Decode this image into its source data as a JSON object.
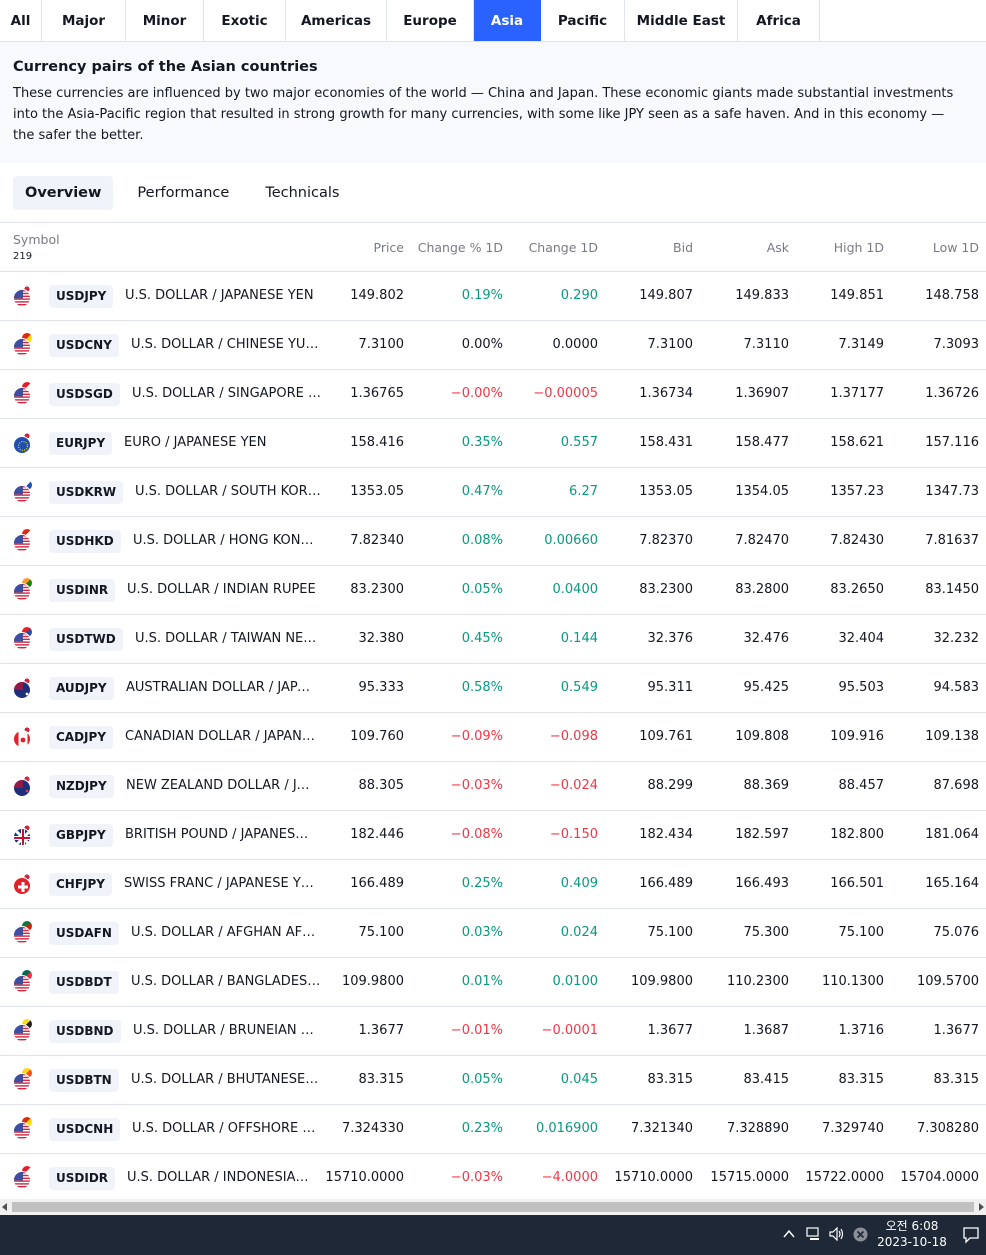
{
  "region_tabs": [
    {
      "label": "All"
    },
    {
      "label": "Major"
    },
    {
      "label": "Minor"
    },
    {
      "label": "Exotic"
    },
    {
      "label": "Americas"
    },
    {
      "label": "Europe"
    },
    {
      "label": "Asia"
    },
    {
      "label": "Pacific"
    },
    {
      "label": "Middle East"
    },
    {
      "label": "Africa"
    }
  ],
  "region_active": "Asia",
  "description": {
    "title": "Currency pairs of the Asian countries",
    "text": "These currencies are influenced by two major economies of the world — China and Japan. These economic giants made substantial investments into the Asia-Pacific region that resulted in strong growth for many currencies, with some like JPY seen as a safe haven. And in this economy — the safer the better."
  },
  "view_tabs": [
    {
      "label": "Overview"
    },
    {
      "label": "Performance"
    },
    {
      "label": "Technicals"
    }
  ],
  "view_active": "Overview",
  "table": {
    "columns": {
      "symbol": "Symbol",
      "count": "219",
      "price": "Price",
      "change_pct": "Change % 1D",
      "change": "Change 1D",
      "bid": "Bid",
      "ask": "Ask",
      "high": "High 1D",
      "low": "Low 1D"
    },
    "rows": [
      {
        "ticker": "USDJPY",
        "name": "U.S. DOLLAR / JAPANESE YEN",
        "price": "149.802",
        "change_pct": "0.19%",
        "change": "0.290",
        "bid": "149.807",
        "ask": "149.833",
        "high": "149.851",
        "low": "148.758",
        "dir": "pos",
        "flag1": "us",
        "flag2": "jp"
      },
      {
        "ticker": "USDCNY",
        "name": "U.S. DOLLAR / CHINESE YUAN",
        "price": "7.3100",
        "change_pct": "0.00%",
        "change": "0.0000",
        "bid": "7.3100",
        "ask": "7.3110",
        "high": "7.3149",
        "low": "7.3093",
        "dir": "neutral",
        "flag1": "us",
        "flag2": "cn"
      },
      {
        "ticker": "USDSGD",
        "name": "U.S. DOLLAR / SINGAPORE D...",
        "price": "1.36765",
        "change_pct": "−0.00%",
        "change": "−0.00005",
        "bid": "1.36734",
        "ask": "1.36907",
        "high": "1.37177",
        "low": "1.36726",
        "dir": "neg",
        "flag1": "us",
        "flag2": "sg"
      },
      {
        "ticker": "EURJPY",
        "name": "EURO / JAPANESE YEN",
        "price": "158.416",
        "change_pct": "0.35%",
        "change": "0.557",
        "bid": "158.431",
        "ask": "158.477",
        "high": "158.621",
        "low": "157.116",
        "dir": "pos",
        "flag1": "eu",
        "flag2": "jp"
      },
      {
        "ticker": "USDKRW",
        "name": "U.S. DOLLAR / SOUTH KORE...",
        "price": "1353.05",
        "change_pct": "0.47%",
        "change": "6.27",
        "bid": "1353.05",
        "ask": "1354.05",
        "high": "1357.23",
        "low": "1347.73",
        "dir": "pos",
        "flag1": "us",
        "flag2": "kr"
      },
      {
        "ticker": "USDHKD",
        "name": "U.S. DOLLAR / HONG KONG ...",
        "price": "7.82340",
        "change_pct": "0.08%",
        "change": "0.00660",
        "bid": "7.82370",
        "ask": "7.82470",
        "high": "7.82430",
        "low": "7.81637",
        "dir": "pos",
        "flag1": "us",
        "flag2": "hk"
      },
      {
        "ticker": "USDINR",
        "name": "U.S. DOLLAR / INDIAN RUPEE",
        "price": "83.2300",
        "change_pct": "0.05%",
        "change": "0.0400",
        "bid": "83.2300",
        "ask": "83.2800",
        "high": "83.2650",
        "low": "83.1450",
        "dir": "pos",
        "flag1": "us",
        "flag2": "in"
      },
      {
        "ticker": "USDTWD",
        "name": "U.S. DOLLAR / TAIWAN NEW...",
        "price": "32.380",
        "change_pct": "0.45%",
        "change": "0.144",
        "bid": "32.376",
        "ask": "32.476",
        "high": "32.404",
        "low": "32.232",
        "dir": "pos",
        "flag1": "us",
        "flag2": "tw"
      },
      {
        "ticker": "AUDJPY",
        "name": "AUSTRALIAN DOLLAR / JAPA...",
        "price": "95.333",
        "change_pct": "0.58%",
        "change": "0.549",
        "bid": "95.311",
        "ask": "95.425",
        "high": "95.503",
        "low": "94.583",
        "dir": "pos",
        "flag1": "au",
        "flag2": "jp"
      },
      {
        "ticker": "CADJPY",
        "name": "CANADIAN DOLLAR / JAPANE...",
        "price": "109.760",
        "change_pct": "−0.09%",
        "change": "−0.098",
        "bid": "109.761",
        "ask": "109.808",
        "high": "109.916",
        "low": "109.138",
        "dir": "neg",
        "flag1": "ca",
        "flag2": "jp"
      },
      {
        "ticker": "NZDJPY",
        "name": "NEW ZEALAND DOLLAR / JA...",
        "price": "88.305",
        "change_pct": "−0.03%",
        "change": "−0.024",
        "bid": "88.299",
        "ask": "88.369",
        "high": "88.457",
        "low": "87.698",
        "dir": "neg",
        "flag1": "nz",
        "flag2": "jp"
      },
      {
        "ticker": "GBPJPY",
        "name": "BRITISH POUND / JAPANESE ...",
        "price": "182.446",
        "change_pct": "−0.08%",
        "change": "−0.150",
        "bid": "182.434",
        "ask": "182.597",
        "high": "182.800",
        "low": "181.064",
        "dir": "neg",
        "flag1": "gb",
        "flag2": "jp"
      },
      {
        "ticker": "CHFJPY",
        "name": "SWISS FRANC / JAPANESE YEN",
        "price": "166.489",
        "change_pct": "0.25%",
        "change": "0.409",
        "bid": "166.489",
        "ask": "166.493",
        "high": "166.501",
        "low": "165.164",
        "dir": "pos",
        "flag1": "ch",
        "flag2": "jp"
      },
      {
        "ticker": "USDAFN",
        "name": "U.S. DOLLAR / AFGHAN AFG...",
        "price": "75.100",
        "change_pct": "0.03%",
        "change": "0.024",
        "bid": "75.100",
        "ask": "75.300",
        "high": "75.100",
        "low": "75.076",
        "dir": "pos",
        "flag1": "us",
        "flag2": "af"
      },
      {
        "ticker": "USDBDT",
        "name": "U.S. DOLLAR / BANGLADESH...",
        "price": "109.9800",
        "change_pct": "0.01%",
        "change": "0.0100",
        "bid": "109.9800",
        "ask": "110.2300",
        "high": "110.1300",
        "low": "109.5700",
        "dir": "pos",
        "flag1": "us",
        "flag2": "bd"
      },
      {
        "ticker": "USDBND",
        "name": "U.S. DOLLAR / BRUNEIAN D...",
        "price": "1.3677",
        "change_pct": "−0.01%",
        "change": "−0.0001",
        "bid": "1.3677",
        "ask": "1.3687",
        "high": "1.3716",
        "low": "1.3677",
        "dir": "neg",
        "flag1": "us",
        "flag2": "bn"
      },
      {
        "ticker": "USDBTN",
        "name": "U.S. DOLLAR / BHUTANESE ...",
        "price": "83.315",
        "change_pct": "0.05%",
        "change": "0.045",
        "bid": "83.315",
        "ask": "83.415",
        "high": "83.315",
        "low": "83.315",
        "dir": "pos",
        "flag1": "us",
        "flag2": "bt"
      },
      {
        "ticker": "USDCNH",
        "name": "U.S. DOLLAR / OFFSHORE C...",
        "price": "7.324330",
        "change_pct": "0.23%",
        "change": "0.016900",
        "bid": "7.321340",
        "ask": "7.328890",
        "high": "7.329740",
        "low": "7.308280",
        "dir": "pos",
        "flag1": "us",
        "flag2": "cn"
      },
      {
        "ticker": "USDIDR",
        "name": "U.S. DOLLAR / INDONESIAN ...",
        "price": "15710.0000",
        "change_pct": "−0.03%",
        "change": "−4.0000",
        "bid": "15710.0000",
        "ask": "15715.0000",
        "high": "15722.0000",
        "low": "15704.0000",
        "dir": "neg",
        "flag1": "us",
        "flag2": "id"
      }
    ]
  },
  "taskbar": {
    "time": "오전 6:08",
    "date": "2023-10-18"
  },
  "colors": {
    "accent": "#2962ff",
    "positive": "#089981",
    "negative": "#f23645",
    "taskbar": "#1f2836"
  }
}
